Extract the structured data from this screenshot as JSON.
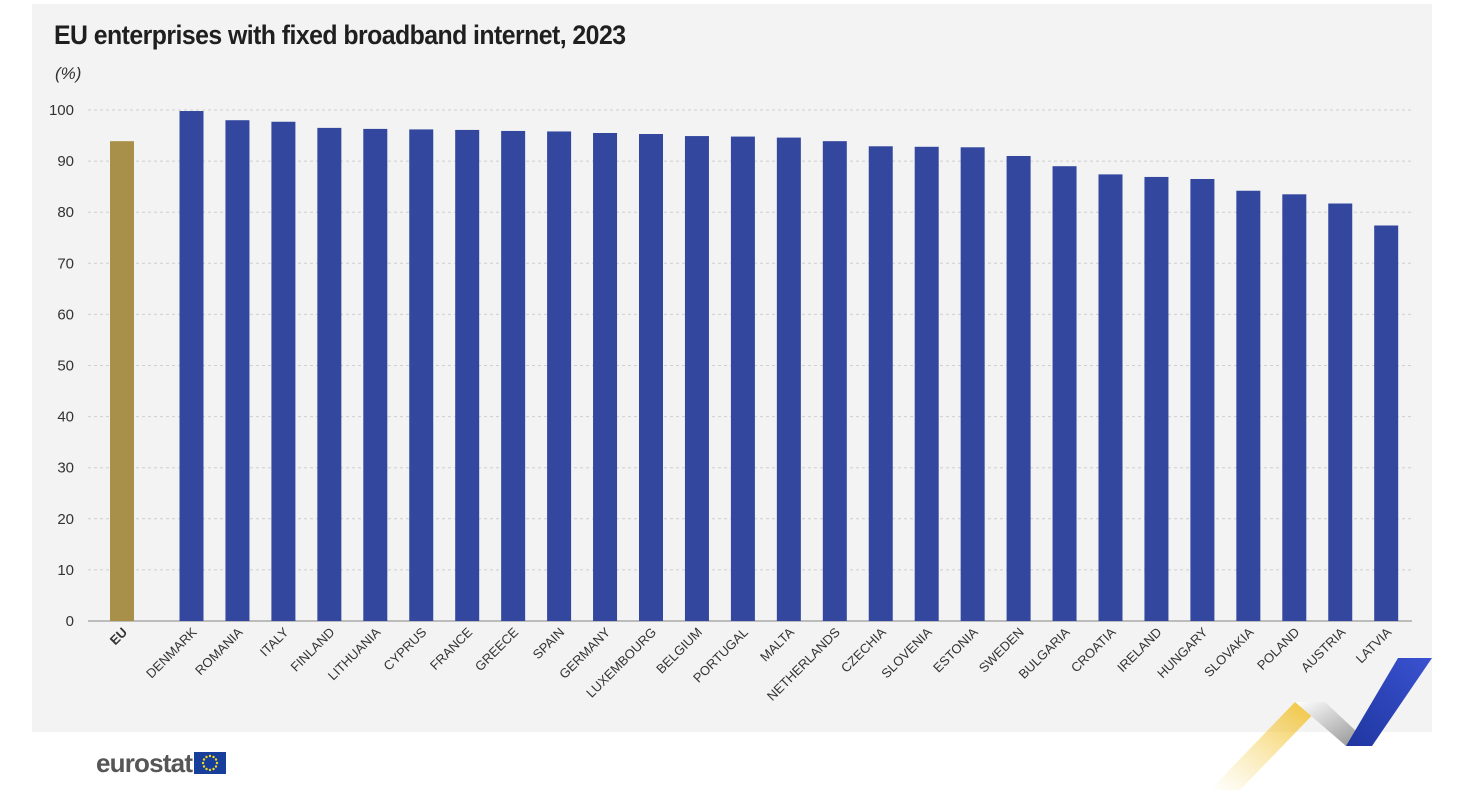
{
  "logo_text": "eurostat",
  "chart_data": {
    "type": "bar",
    "title": "EU enterprises with fixed broadband internet, 2023",
    "subtitle": "(%)",
    "xlabel": "",
    "ylabel": "",
    "ylim": [
      0,
      100
    ],
    "yticks": [
      0,
      10,
      20,
      30,
      40,
      50,
      60,
      70,
      80,
      90,
      100
    ],
    "grid": true,
    "categories": [
      "EU",
      "DENMARK",
      "ROMANIA",
      "ITALY",
      "FINLAND",
      "LITHUANIA",
      "CYPRUS",
      "FRANCE",
      "GREECE",
      "SPAIN",
      "GERMANY",
      "LUXEMBOURG",
      "BELGIUM",
      "PORTUGAL",
      "MALTA",
      "NETHERLANDS",
      "CZECHIA",
      "SLOVENIA",
      "ESTONIA",
      "SWEDEN",
      "BULGARIA",
      "CROATIA",
      "IRELAND",
      "HUNGARY",
      "SLOVAKIA",
      "POLAND",
      "AUSTRIA",
      "LATVIA"
    ],
    "values": [
      93.9,
      99.8,
      98.0,
      97.7,
      96.5,
      96.3,
      96.2,
      96.1,
      95.9,
      95.8,
      95.5,
      95.3,
      94.9,
      94.8,
      94.6,
      93.9,
      92.9,
      92.8,
      92.7,
      91.0,
      89.0,
      87.4,
      86.9,
      86.5,
      84.2,
      83.5,
      81.7,
      77.4
    ],
    "colors": {
      "eu": "#a8904a",
      "country": "#32479d"
    }
  }
}
